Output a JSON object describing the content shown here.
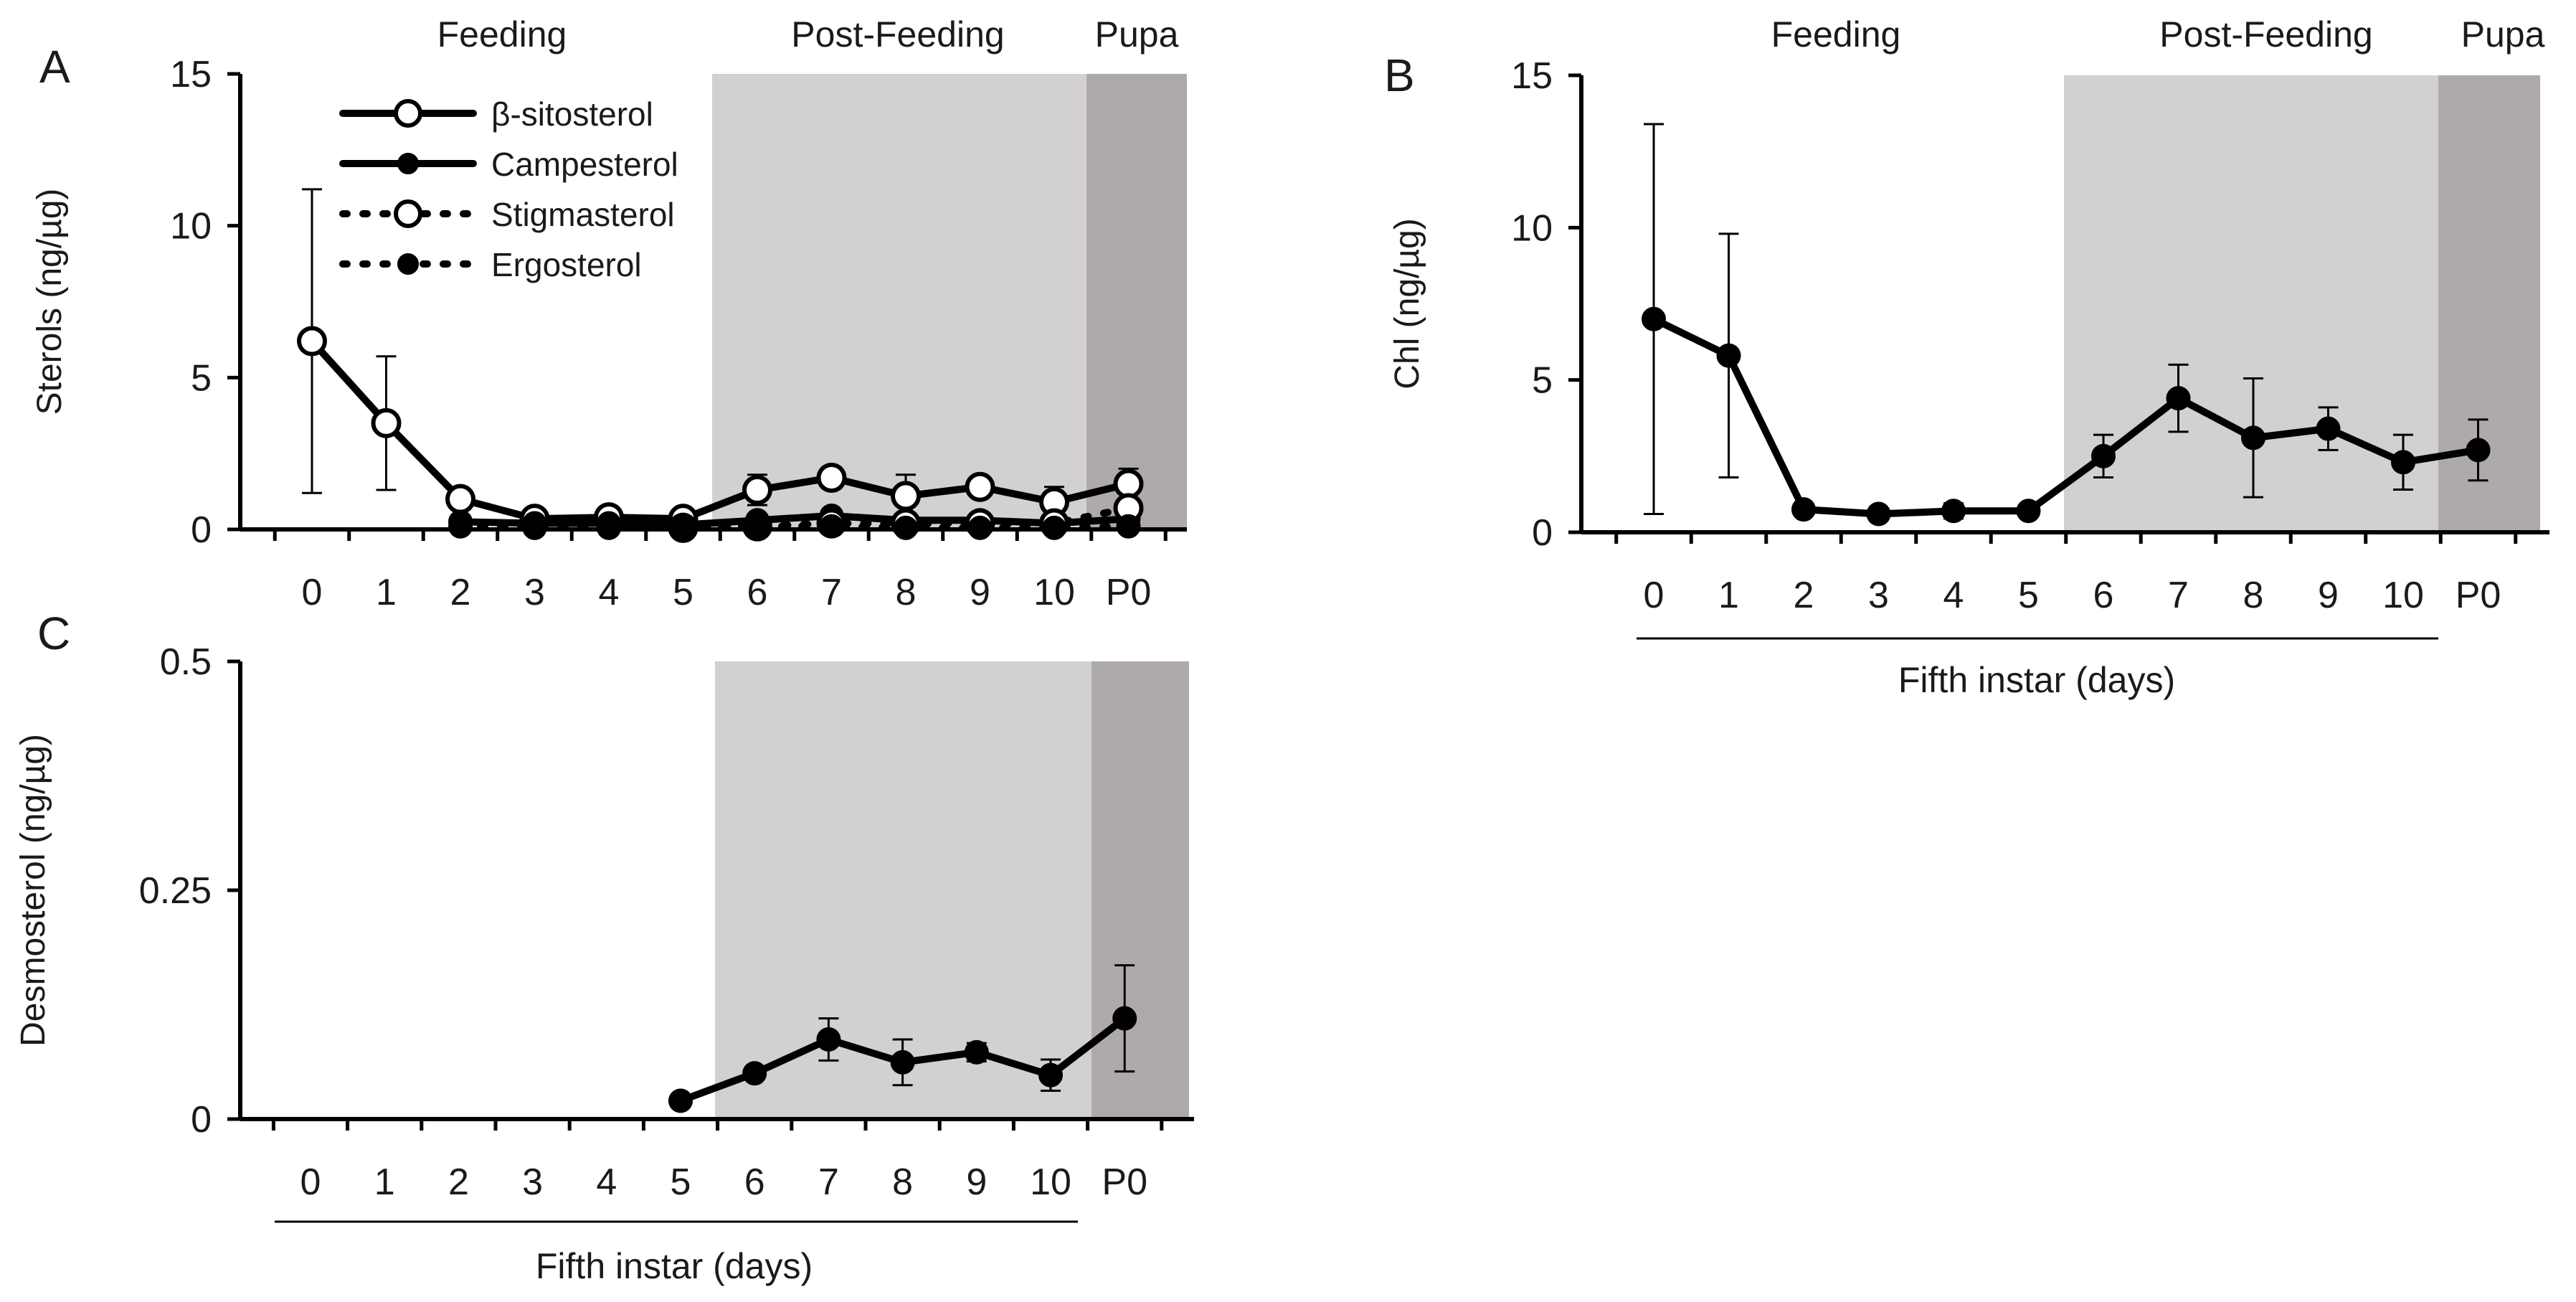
{
  "colors": {
    "post_feeding_shade": "#d3d0d0",
    "pupa_shade": "#aeaaa9",
    "ink": "#000000",
    "open_marker_fill": "#ffffff"
  },
  "chart_data": [
    {
      "id": "A",
      "type": "line",
      "panel_label": "A",
      "phases": [
        "Feeding",
        "Post-Feeding",
        "Pupa"
      ],
      "categories": [
        "0",
        "1",
        "2",
        "3",
        "4",
        "5",
        "6",
        "7",
        "8",
        "9",
        "10",
        "P0"
      ],
      "ylabel": "Sterols (ng/µg)",
      "xlabel": "",
      "ylim": [
        0,
        15
      ],
      "yticks": [
        "0",
        "5",
        "10",
        "15"
      ],
      "legend": [
        "β-sitosterol",
        "Campesterol",
        "Stigmasterol",
        "Ergosterol"
      ],
      "series": [
        {
          "name": "β-sitosterol",
          "style": "solid",
          "marker": "open",
          "values": [
            6.2,
            3.5,
            1.0,
            0.35,
            0.4,
            0.35,
            1.3,
            1.7,
            1.1,
            1.4,
            0.9,
            1.5
          ],
          "errors": [
            5.0,
            2.2,
            0,
            0,
            0,
            0,
            0.5,
            0.35,
            0.7,
            0.25,
            0.5,
            0.5
          ]
        },
        {
          "name": "Campesterol",
          "style": "solid",
          "marker": "filled",
          "values": [
            null,
            null,
            0.25,
            0.2,
            0.2,
            0.15,
            0.3,
            0.45,
            0.3,
            0.3,
            0.2,
            0.35
          ],
          "errors": [
            0,
            0,
            0,
            0,
            0,
            0,
            0,
            0,
            0,
            0,
            0,
            0
          ]
        },
        {
          "name": "Stigmasterol",
          "style": "dotted",
          "marker": "open",
          "values": [
            null,
            null,
            null,
            null,
            null,
            0.05,
            0.1,
            0.2,
            0.2,
            0.2,
            0.2,
            0.7
          ],
          "errors": [
            0,
            0,
            0,
            0,
            0,
            0,
            0,
            0,
            0,
            0,
            0,
            0
          ]
        },
        {
          "name": "Ergosterol",
          "style": "dotted",
          "marker": "filled",
          "values": [
            null,
            null,
            0.1,
            0.05,
            0.05,
            0.05,
            0.1,
            0.1,
            0.05,
            0.05,
            0.05,
            0.1
          ],
          "errors": [
            0,
            0,
            0,
            0,
            0,
            0,
            0,
            0,
            0,
            0,
            0,
            0
          ]
        }
      ]
    },
    {
      "id": "B",
      "type": "line",
      "panel_label": "B",
      "phases": [
        "Feeding",
        "Post-Feeding",
        "Pupa"
      ],
      "categories": [
        "0",
        "1",
        "2",
        "3",
        "4",
        "5",
        "6",
        "7",
        "8",
        "9",
        "10",
        "P0"
      ],
      "ylabel": "Chl  (ng/µg)",
      "xlabel": "Fifth instar (days)",
      "ylim": [
        0,
        15
      ],
      "yticks": [
        "0",
        "5",
        "10",
        "15"
      ],
      "series": [
        {
          "name": "Chl",
          "style": "solid",
          "marker": "filled",
          "values": [
            7.0,
            5.8,
            0.75,
            0.6,
            0.7,
            0.7,
            2.5,
            4.4,
            3.1,
            3.4,
            2.3,
            2.7
          ],
          "errors": [
            6.4,
            4.0,
            0,
            0,
            0.25,
            0,
            0.7,
            1.1,
            1.95,
            0.7,
            0.9,
            1.0
          ]
        }
      ]
    },
    {
      "id": "C",
      "type": "line",
      "panel_label": "C",
      "categories": [
        "0",
        "1",
        "2",
        "3",
        "4",
        "5",
        "6",
        "7",
        "8",
        "9",
        "10",
        "P0"
      ],
      "ylabel": "Desmosterol (ng/µg)",
      "xlabel": "Fifth instar (days)",
      "ylim": [
        0,
        0.5
      ],
      "yticks": [
        "0",
        "0.25",
        "0.5"
      ],
      "series": [
        {
          "name": "Desmosterol",
          "style": "solid",
          "marker": "filled",
          "values": [
            null,
            null,
            null,
            null,
            null,
            0.02,
            0.05,
            0.087,
            0.062,
            0.073,
            0.048,
            0.11
          ],
          "errors": [
            0,
            0,
            0,
            0,
            0,
            0,
            0,
            0.023,
            0.025,
            0.01,
            0.017,
            0.058
          ]
        }
      ]
    }
  ]
}
